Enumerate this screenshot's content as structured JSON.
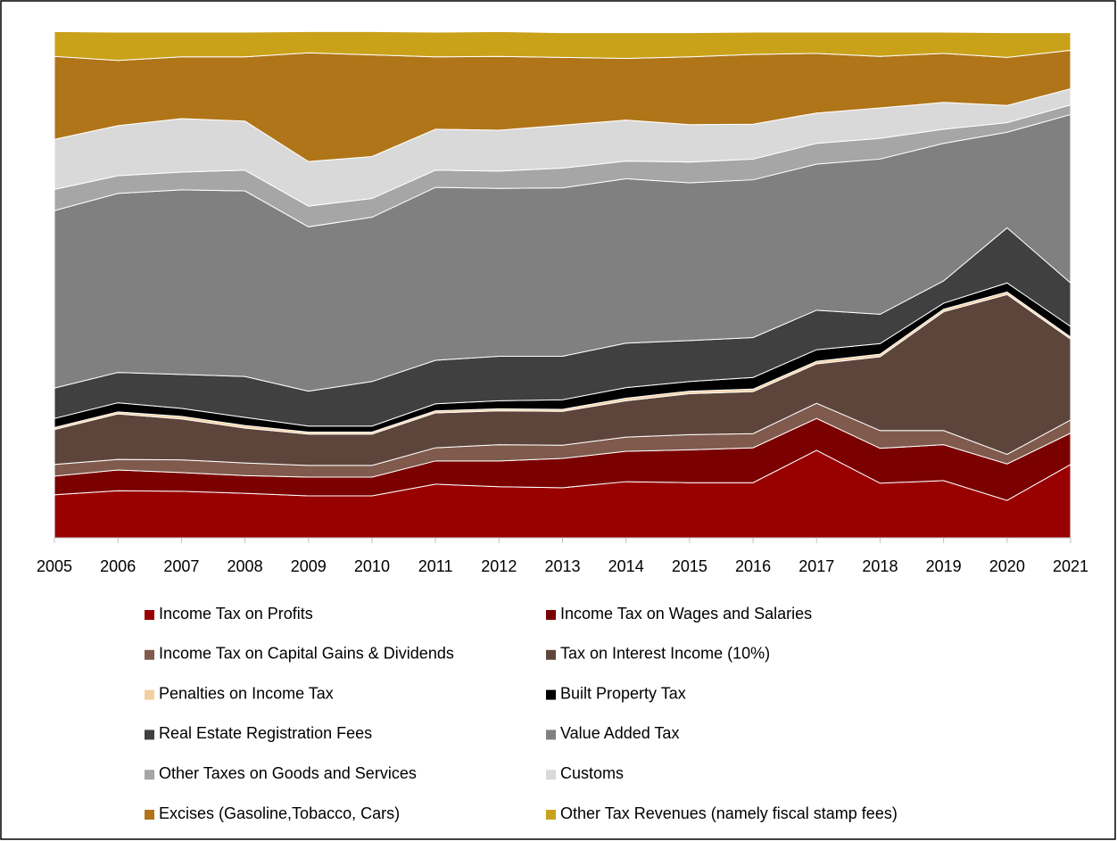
{
  "chart_data": {
    "type": "stacked_area_100",
    "categories": [
      "2005",
      "2006",
      "2007",
      "2008",
      "2009",
      "2010",
      "2011",
      "2012",
      "2013",
      "2014",
      "2015",
      "2016",
      "2017",
      "2018",
      "2019",
      "2020",
      "2021"
    ],
    "ylim": [
      0,
      100
    ],
    "legend": "bottom",
    "series": [
      {
        "name": "Income Tax on Profits",
        "color": "#990000",
        "values": [
          8.5,
          9.3,
          9.2,
          8.8,
          8.3,
          8.3,
          10.6,
          10.1,
          9.9,
          11.1,
          10.9,
          10.9,
          17.3,
          10.8,
          11.3,
          7.4,
          14.5
        ]
      },
      {
        "name": "Income Tax on Wages and Salaries",
        "color": "#7b0000",
        "values": [
          3.7,
          4.1,
          3.7,
          3.5,
          3.7,
          3.7,
          4.6,
          5.1,
          5.8,
          6.0,
          6.5,
          6.9,
          6.3,
          6.9,
          7.1,
          7.2,
          6.2
        ]
      },
      {
        "name": "Income Tax on Capital Gains & Dividends",
        "color": "#7f5a4d",
        "values": [
          2.3,
          2.1,
          2.5,
          2.5,
          2.3,
          2.3,
          2.6,
          3.2,
          2.6,
          2.8,
          3.0,
          2.8,
          3.0,
          3.5,
          2.8,
          1.9,
          2.6
        ]
      },
      {
        "name": "Tax on Interest Income (10%)",
        "color": "#5e453b",
        "values": [
          6.9,
          9.0,
          8.1,
          6.9,
          6.2,
          6.2,
          6.9,
          6.7,
          6.7,
          7.2,
          8.1,
          8.3,
          7.8,
          14.6,
          23.5,
          31.6,
          16.0
        ]
      },
      {
        "name": "Penalties on Income Tax",
        "color": "#f5cfa0",
        "values": [
          0.4,
          0.4,
          0.5,
          0.5,
          0.4,
          0.4,
          0.4,
          0.4,
          0.4,
          0.5,
          0.5,
          0.5,
          0.5,
          0.5,
          0.5,
          0.5,
          0.4
        ]
      },
      {
        "name": "Built Property Tax",
        "color": "#000000",
        "values": [
          1.8,
          1.8,
          1.6,
          1.6,
          1.2,
          1.2,
          1.4,
          1.6,
          1.9,
          2.1,
          1.9,
          2.3,
          2.3,
          2.1,
          1.2,
          1.8,
          2.1
        ]
      },
      {
        "name": "Real Estate Registration Fees",
        "color": "#404040",
        "values": [
          6.0,
          6.0,
          6.7,
          8.1,
          6.9,
          8.8,
          8.6,
          8.8,
          8.6,
          8.8,
          8.1,
          7.9,
          7.8,
          5.8,
          4.4,
          10.9,
          8.6
        ]
      },
      {
        "name": "Value Added Tax",
        "color": "#808080",
        "values": [
          35.1,
          35.4,
          36.5,
          36.7,
          32.5,
          32.5,
          34.2,
          33.2,
          33.3,
          32.5,
          31.2,
          31.2,
          28.9,
          30.7,
          27.2,
          18.9,
          33.3
        ]
      },
      {
        "name": "Other Taxes on Goods and Services",
        "color": "#a6a6a6",
        "values": [
          4.2,
          3.5,
          3.5,
          4.1,
          4.1,
          3.7,
          3.4,
          3.4,
          3.9,
          3.5,
          4.1,
          4.1,
          4.1,
          4.1,
          2.8,
          1.9,
          1.9
        ]
      },
      {
        "name": "Customs",
        "color": "#d9d9d9",
        "values": [
          9.9,
          9.9,
          10.6,
          9.7,
          8.8,
          8.3,
          8.1,
          8.1,
          8.5,
          8.1,
          7.4,
          6.9,
          6.0,
          6.0,
          5.3,
          3.4,
          3.2
        ]
      },
      {
        "name": "Excises (Gasoline,Tobacco, Cars)",
        "color": "#b07519",
        "values": [
          16.4,
          12.9,
          12.2,
          12.7,
          21.5,
          20.1,
          14.3,
          14.6,
          13.4,
          12.2,
          13.4,
          13.8,
          11.8,
          10.2,
          9.7,
          9.5,
          7.6
        ]
      },
      {
        "name": "Other Tax Revenues (namely fiscal stamp fees)",
        "color": "#c9a21a",
        "values": [
          4.9,
          5.6,
          4.9,
          4.9,
          4.2,
          4.6,
          4.9,
          4.9,
          4.9,
          5.1,
          4.8,
          4.4,
          4.2,
          4.8,
          4.2,
          4.9,
          3.5
        ]
      }
    ]
  }
}
